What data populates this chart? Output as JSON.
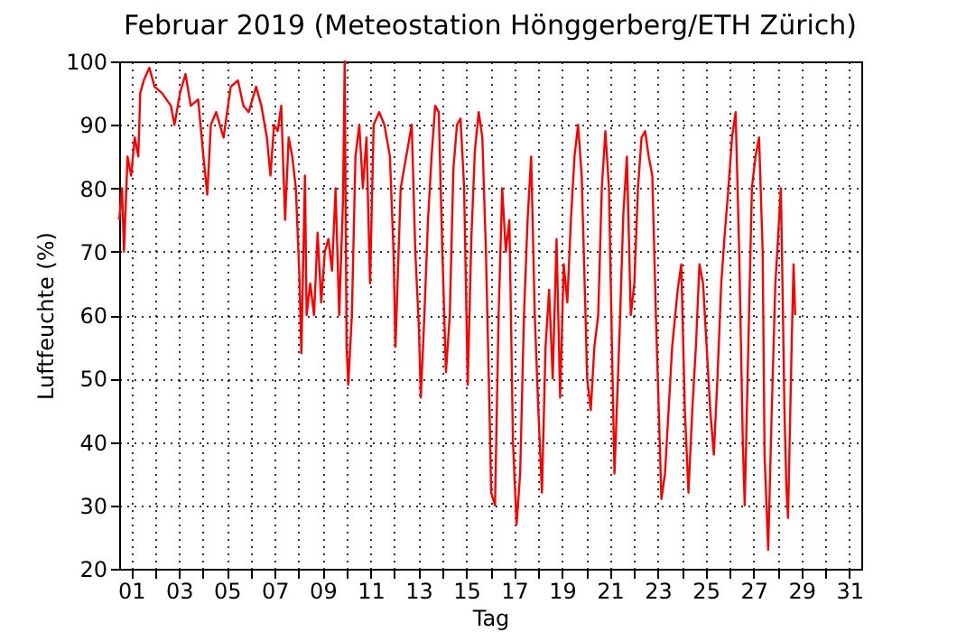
{
  "chart_data": {
    "type": "line",
    "title": "Februar 2019  (Meteostation Hönggerberg/ETH Zürich)",
    "xlabel": "Tag",
    "ylabel": "Luftfeuchte (%)",
    "x": [
      0.5,
      0.62,
      0.7,
      0.85,
      1.0,
      1.15,
      1.3,
      1.38,
      1.53,
      1.76,
      1.98,
      2.29,
      2.66,
      2.81,
      3.04,
      3.27,
      3.49,
      3.8,
      4.02,
      4.18,
      4.33,
      4.55,
      4.86,
      5.16,
      5.46,
      5.69,
      5.91,
      6.22,
      6.44,
      6.67,
      6.82,
      6.97,
      7.12,
      7.27,
      7.43,
      7.58,
      7.73,
      7.88,
      8.03,
      8.11,
      8.26,
      8.33,
      8.48,
      8.64,
      8.79,
      8.94,
      9.09,
      9.24,
      9.39,
      9.54,
      9.69,
      9.85,
      9.92,
      10.0,
      10.07,
      10.22,
      10.37,
      10.53,
      10.68,
      10.83,
      10.98,
      11.13,
      11.36,
      11.58,
      11.81,
      11.96,
      12.04,
      12.26,
      12.49,
      12.72,
      12.87,
      13.02,
      13.1,
      13.25,
      13.4,
      13.55,
      13.7,
      13.85,
      14.0,
      14.15,
      14.31,
      14.46,
      14.61,
      14.76,
      14.91,
      15.06,
      15.21,
      15.36,
      15.52,
      15.67,
      15.82,
      15.97,
      16.04,
      16.2,
      16.35,
      16.5,
      16.65,
      16.8,
      16.95,
      17.1,
      17.25,
      17.41,
      17.56,
      17.71,
      17.86,
      18.01,
      18.16,
      18.31,
      18.46,
      18.61,
      18.77,
      18.92,
      19.07,
      19.22,
      19.37,
      19.52,
      19.67,
      19.82,
      19.98,
      20.05,
      20.2,
      20.35,
      20.51,
      20.66,
      20.81,
      20.96,
      21.11,
      21.19,
      21.41,
      21.56,
      21.71,
      21.87,
      22.02,
      22.17,
      22.32,
      22.47,
      22.62,
      22.77,
      22.92,
      23.08,
      23.15,
      23.3,
      23.45,
      23.6,
      23.83,
      23.98,
      24.13,
      24.28,
      24.44,
      24.59,
      24.74,
      24.89,
      25.04,
      25.19,
      25.34,
      25.49,
      25.65,
      25.8,
      25.95,
      26.1,
      26.25,
      26.4,
      26.55,
      26.63,
      26.78,
      26.93,
      27.08,
      27.23,
      27.38,
      27.46,
      27.61,
      27.76,
      27.91,
      27.99,
      28.14,
      28.22,
      28.29,
      28.37,
      28.44,
      28.59,
      28.67,
      28.74
    ],
    "series": [
      {
        "color": "#ff0000",
        "values": [
          75,
          80,
          70,
          85,
          82,
          88,
          85,
          95,
          97,
          99,
          96,
          95,
          93,
          90,
          95,
          98,
          93,
          94,
          85,
          79,
          90,
          92,
          88,
          96,
          97,
          93,
          92,
          96,
          93,
          88,
          82,
          90,
          89,
          93,
          75,
          88,
          85,
          80,
          66,
          54,
          82,
          60,
          65,
          60,
          73,
          62,
          70,
          72,
          67,
          80,
          60,
          78,
          100,
          55,
          49,
          60,
          85,
          90,
          80,
          88,
          65,
          90,
          92,
          90,
          85,
          70,
          55,
          80,
          85,
          90,
          70,
          58,
          47,
          60,
          75,
          85,
          93,
          92,
          70,
          51,
          60,
          83,
          90,
          91,
          80,
          49,
          72,
          86,
          92,
          88,
          70,
          45,
          32,
          30,
          60,
          80,
          70,
          75,
          40,
          27,
          35,
          60,
          75,
          85,
          60,
          45,
          32,
          55,
          64,
          50,
          72,
          47,
          68,
          62,
          75,
          85,
          90,
          82,
          60,
          50,
          45,
          55,
          60,
          80,
          89,
          80,
          50,
          35,
          58,
          76,
          85,
          60,
          65,
          80,
          88,
          89,
          85,
          82,
          60,
          40,
          31,
          35,
          45,
          55,
          64,
          68,
          45,
          32,
          45,
          55,
          68,
          65,
          55,
          45,
          38,
          50,
          65,
          73,
          80,
          88,
          92,
          70,
          40,
          30,
          55,
          80,
          85,
          88,
          70,
          38,
          23,
          45,
          65,
          70,
          80,
          62,
          45,
          33,
          28,
          55,
          68,
          60
        ]
      }
    ],
    "xlim": [
      0.5,
      31.5
    ],
    "ylim": [
      20,
      100
    ],
    "xticks": [
      {
        "value": 1,
        "label": "01"
      },
      {
        "value": 2,
        "label": null
      },
      {
        "value": 3,
        "label": "03"
      },
      {
        "value": 4,
        "label": null
      },
      {
        "value": 5,
        "label": "05"
      },
      {
        "value": 6,
        "label": null
      },
      {
        "value": 7,
        "label": "07"
      },
      {
        "value": 8,
        "label": null
      },
      {
        "value": 9,
        "label": "09"
      },
      {
        "value": 10,
        "label": null
      },
      {
        "value": 11,
        "label": "11"
      },
      {
        "value": 12,
        "label": null
      },
      {
        "value": 13,
        "label": "13"
      },
      {
        "value": 14,
        "label": null
      },
      {
        "value": 15,
        "label": "15"
      },
      {
        "value": 16,
        "label": null
      },
      {
        "value": 17,
        "label": "17"
      },
      {
        "value": 18,
        "label": null
      },
      {
        "value": 19,
        "label": "19"
      },
      {
        "value": 20,
        "label": null
      },
      {
        "value": 21,
        "label": "21"
      },
      {
        "value": 22,
        "label": null
      },
      {
        "value": 23,
        "label": "23"
      },
      {
        "value": 24,
        "label": null
      },
      {
        "value": 25,
        "label": "25"
      },
      {
        "value": 26,
        "label": null
      },
      {
        "value": 27,
        "label": "27"
      },
      {
        "value": 28,
        "label": null
      },
      {
        "value": 29,
        "label": "29"
      },
      {
        "value": 30,
        "label": null
      },
      {
        "value": 31,
        "label": "31"
      }
    ],
    "yticks": [
      20,
      30,
      40,
      50,
      60,
      70,
      80,
      90,
      100
    ],
    "grid": true,
    "line_style": "solid",
    "marker": "none"
  }
}
